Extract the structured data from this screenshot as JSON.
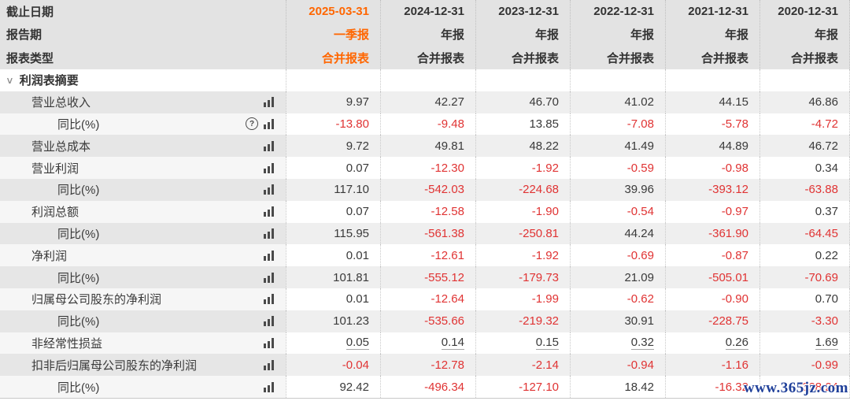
{
  "colors": {
    "accent_orange": "#ff6600",
    "negative_red": "#e03333",
    "header_bg": "#e3e3e3",
    "stripe_gray": "#efefef",
    "watermark_blue": "#20409a"
  },
  "header": {
    "row_labels": [
      "截止日期",
      "报告期",
      "报表类型"
    ],
    "columns": [
      {
        "date": "2025-03-31",
        "period": "一季报",
        "type": "合并报表",
        "highlight": true
      },
      {
        "date": "2024-12-31",
        "period": "年报",
        "type": "合并报表",
        "highlight": false
      },
      {
        "date": "2023-12-31",
        "period": "年报",
        "type": "合并报表",
        "highlight": false
      },
      {
        "date": "2022-12-31",
        "period": "年报",
        "type": "合并报表",
        "highlight": false
      },
      {
        "date": "2021-12-31",
        "period": "年报",
        "type": "合并报表",
        "highlight": false
      },
      {
        "date": "2020-12-31",
        "period": "年报",
        "type": "合并报表",
        "highlight": false
      }
    ]
  },
  "section": {
    "title": "利润表摘要",
    "collapse_icon": "chevron-down"
  },
  "rows": [
    {
      "label": "营业总收入",
      "indent": 1,
      "help_icon": false,
      "underline_values": false,
      "values": [
        "9.97",
        "42.27",
        "46.70",
        "41.02",
        "44.15",
        "46.86"
      ]
    },
    {
      "label": "同比(%)",
      "indent": 2,
      "help_icon": true,
      "underline_values": false,
      "values": [
        "-13.80",
        "-9.48",
        "13.85",
        "-7.08",
        "-5.78",
        "-4.72"
      ]
    },
    {
      "label": "营业总成本",
      "indent": 1,
      "help_icon": false,
      "underline_values": false,
      "values": [
        "9.72",
        "49.81",
        "48.22",
        "41.49",
        "44.89",
        "46.72"
      ]
    },
    {
      "label": "营业利润",
      "indent": 1,
      "help_icon": false,
      "underline_values": false,
      "values": [
        "0.07",
        "-12.30",
        "-1.92",
        "-0.59",
        "-0.98",
        "0.34"
      ]
    },
    {
      "label": "同比(%)",
      "indent": 2,
      "help_icon": false,
      "underline_values": false,
      "values": [
        "117.10",
        "-542.03",
        "-224.68",
        "39.96",
        "-393.12",
        "-63.88"
      ]
    },
    {
      "label": "利润总额",
      "indent": 1,
      "help_icon": false,
      "underline_values": false,
      "values": [
        "0.07",
        "-12.58",
        "-1.90",
        "-0.54",
        "-0.97",
        "0.37"
      ]
    },
    {
      "label": "同比(%)",
      "indent": 2,
      "help_icon": false,
      "underline_values": false,
      "values": [
        "115.95",
        "-561.38",
        "-250.81",
        "44.24",
        "-361.90",
        "-64.45"
      ]
    },
    {
      "label": "净利润",
      "indent": 1,
      "help_icon": false,
      "underline_values": false,
      "values": [
        "0.01",
        "-12.61",
        "-1.92",
        "-0.69",
        "-0.87",
        "0.22"
      ]
    },
    {
      "label": "同比(%)",
      "indent": 2,
      "help_icon": false,
      "underline_values": false,
      "values": [
        "101.81",
        "-555.12",
        "-179.73",
        "21.09",
        "-505.01",
        "-70.69"
      ]
    },
    {
      "label": "归属母公司股东的净利润",
      "indent": 1,
      "help_icon": false,
      "underline_values": false,
      "values": [
        "0.01",
        "-12.64",
        "-1.99",
        "-0.62",
        "-0.90",
        "0.70"
      ]
    },
    {
      "label": "同比(%)",
      "indent": 2,
      "help_icon": false,
      "underline_values": false,
      "values": [
        "101.23",
        "-535.66",
        "-219.32",
        "30.91",
        "-228.75",
        "-3.30"
      ]
    },
    {
      "label": "非经常性损益",
      "indent": 1,
      "help_icon": false,
      "underline_values": true,
      "values": [
        "0.05",
        "0.14",
        "0.15",
        "0.32",
        "0.26",
        "1.69"
      ]
    },
    {
      "label": "扣非后归属母公司股东的净利润",
      "indent": 1,
      "help_icon": false,
      "underline_values": false,
      "values": [
        "-0.04",
        "-12.78",
        "-2.14",
        "-0.94",
        "-1.16",
        "-0.99"
      ]
    },
    {
      "label": "同比(%)",
      "indent": 2,
      "help_icon": false,
      "underline_values": false,
      "values": [
        "92.42",
        "-496.34",
        "-127.10",
        "18.42",
        "-16.32",
        "-328.24"
      ]
    }
  ],
  "watermark": "www.365jz.com"
}
